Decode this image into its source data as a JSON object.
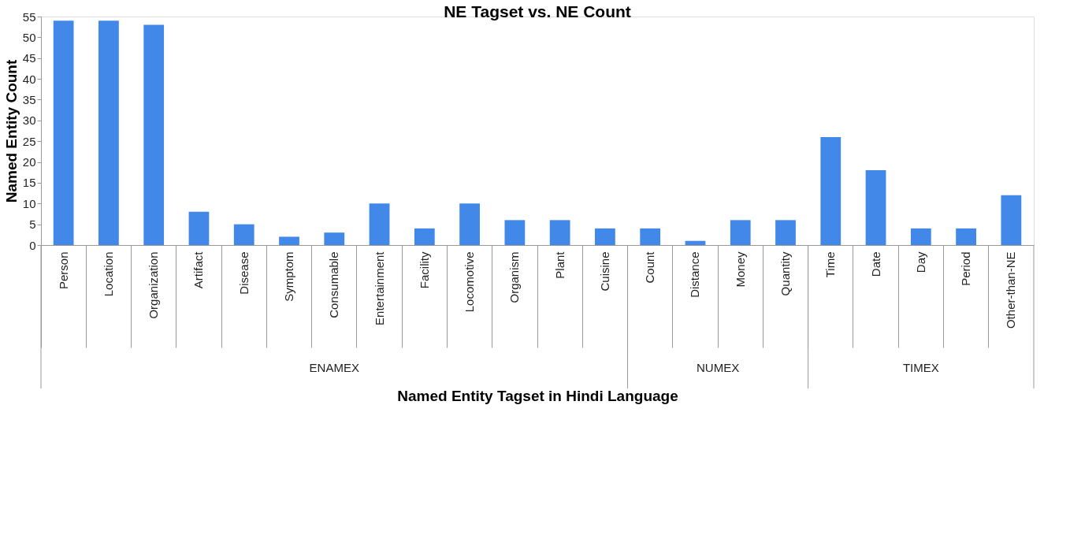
{
  "chart_data": {
    "type": "bar",
    "title": "NE Tagset vs. NE Count",
    "xlabel": "Named Entity Tagset in Hindi Language",
    "ylabel": "Named Entity Count",
    "categories": [
      "Person",
      "Location",
      "Organization",
      "Artifact",
      "Disease",
      "Symptom",
      "Consumable",
      "Entertainment",
      "Facility",
      "Locomotive",
      "Organism",
      "Plant",
      "Cuisine",
      "Count",
      "Distance",
      "Money",
      "Quantity",
      "Time",
      "Date",
      "Day",
      "Period",
      "Other-than-NE"
    ],
    "values": [
      54,
      54,
      53,
      8,
      5,
      2,
      3,
      10,
      4,
      10,
      6,
      6,
      4,
      4,
      1,
      6,
      6,
      26,
      18,
      4,
      4,
      12
    ],
    "color": "#4188e8",
    "ylim": [
      0,
      55
    ],
    "yticks": [
      0,
      5,
      10,
      15,
      20,
      25,
      30,
      35,
      40,
      45,
      50,
      55
    ],
    "grid": false,
    "annotations": [
      "ENAMEX",
      "NUMEX",
      "TIMEX"
    ]
  }
}
